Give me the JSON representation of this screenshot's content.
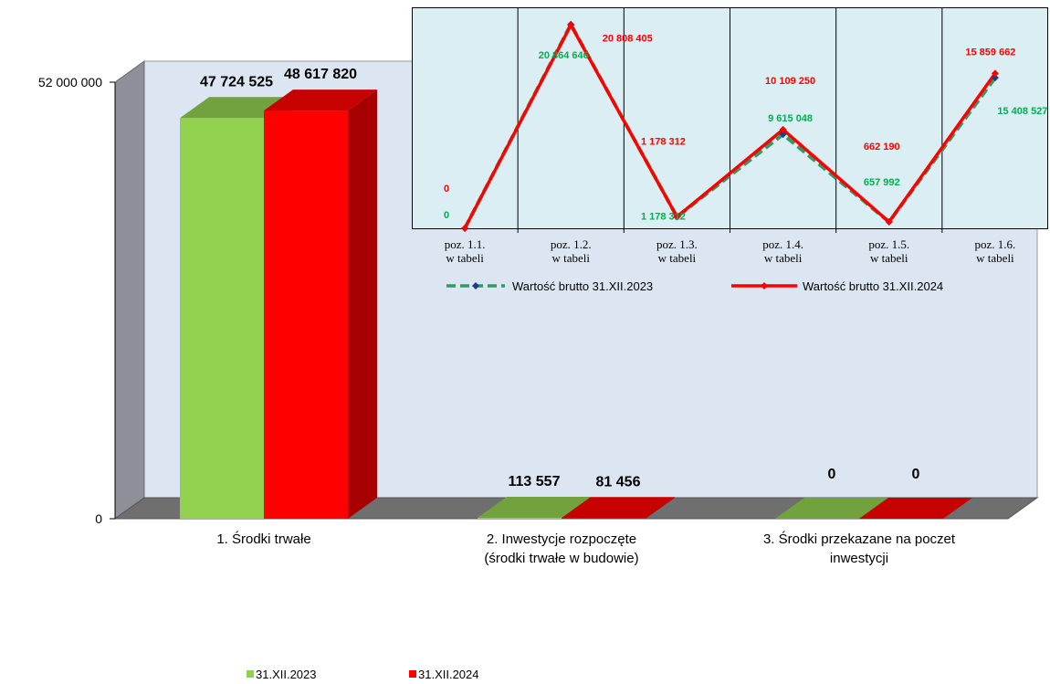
{
  "chart_data": [
    {
      "type": "bar",
      "style": "3d-clustered-column",
      "categories": [
        "1. Środki trwałe",
        "2. Inwestycje rozpoczęte (środki trwałe w budowie)",
        "3. Środki przekazane na poczet inwestycji"
      ],
      "category_lines": [
        [
          "1. Środki trwałe"
        ],
        [
          "2. Inwestycje rozpoczęte",
          "(środki trwałe w budowie)"
        ],
        [
          "3. Środki przekazane na poczet",
          "inwestycji"
        ]
      ],
      "series": [
        {
          "name": "31.XII.2023",
          "color": "#92d050",
          "values": [
            47724525,
            113557,
            0
          ],
          "labels": [
            "47 724 525",
            "113 557",
            "0"
          ]
        },
        {
          "name": "31.XII.2024",
          "color": "#ff0000",
          "values": [
            48617820,
            81456,
            0
          ],
          "labels": [
            "48 617 820",
            "81 456",
            "0"
          ]
        }
      ],
      "yticks": [
        "0",
        "52 000 000"
      ],
      "ylim": [
        0,
        52000000
      ],
      "legend_position": "bottom",
      "colors": {
        "wall": "#dce6f2",
        "side_wall": "#8e9099",
        "floor": "#6f6f6f"
      }
    },
    {
      "type": "line",
      "categories": [
        [
          "poz. 1.1.",
          "w tabeli"
        ],
        [
          "poz. 1.2.",
          "w tabeli"
        ],
        [
          "poz. 1.3.",
          "w tabeli"
        ],
        [
          "poz. 1.4.",
          "w tabeli"
        ],
        [
          "poz. 1.5.",
          "w tabeli"
        ],
        [
          "poz. 1.6.",
          "w tabeli"
        ]
      ],
      "series": [
        {
          "name": "Wartość brutto 31.XII.2023",
          "color": "#339966",
          "marker_color": "#1f3c88",
          "dash": true,
          "values": [
            0,
            20864646,
            1178312,
            9615048,
            657992,
            15408527
          ],
          "labels": [
            "0",
            "20 864 646",
            "1 178 312",
            "9 615 048",
            "657 992",
            "15 408 527"
          ]
        },
        {
          "name": "Wartość brutto 31.XII.2024",
          "color": "#ff0000",
          "marker_color": "#ff0000",
          "dash": false,
          "values": [
            0,
            20808405,
            1178312,
            10109250,
            662190,
            15859662
          ],
          "labels": [
            "0",
            "20 808 405",
            "1 178 312",
            "10 109 250",
            "662 190",
            "15 859 662"
          ]
        }
      ],
      "ylim": [
        0,
        21500000
      ],
      "legend_position": "bottom",
      "colors": {
        "plot_bg": "#daeef3",
        "label_2023": "#00b050",
        "label_2024": "#ff0000"
      }
    }
  ]
}
